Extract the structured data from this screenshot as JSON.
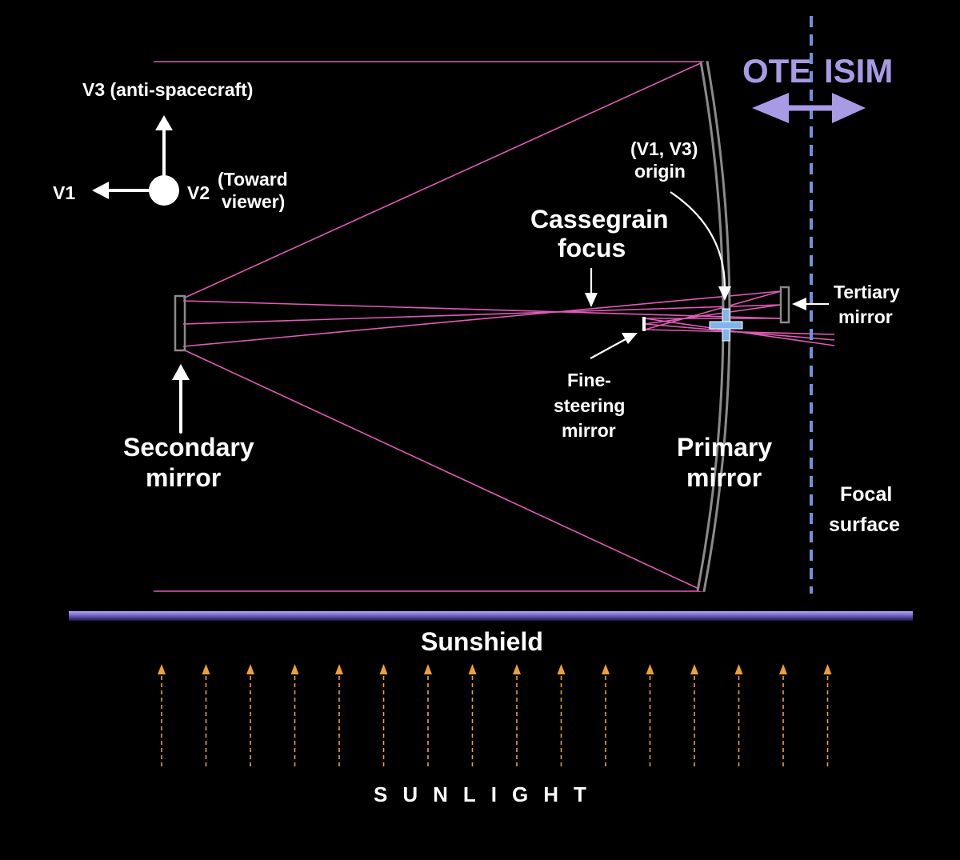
{
  "colors": {
    "background": "#000000",
    "light_ray": "#e05ab6",
    "mirror": "#8a8a8a",
    "focal_line": "#6f93d8",
    "section_label": "#a99ae6",
    "origin_cross": "#7fb6ea",
    "sunshield": "#8b7fd0",
    "sunlight": "#f0a030"
  },
  "axes": {
    "v3_label": "V3 (anti-spacecraft)",
    "v1_label": "V1",
    "v2_label": "V2",
    "v2_note_line1": "(Toward",
    "v2_note_line2": "viewer)"
  },
  "sections": {
    "ote": "OTE",
    "isim": "ISIM"
  },
  "labels": {
    "origin_line1": "(V1, V3)",
    "origin_line2": "origin",
    "cassegrain_line1": "Cassegrain",
    "cassegrain_line2": "focus",
    "tertiary_line1": "Tertiary",
    "tertiary_line2": "mirror",
    "fine_steering_line1": "Fine-",
    "fine_steering_line2": "steering",
    "fine_steering_line3": "mirror",
    "secondary_line1": "Secondary",
    "secondary_line2": "mirror",
    "primary_line1": "Primary",
    "primary_line2": "mirror",
    "focal_line1": "Focal",
    "focal_line2": "surface",
    "sunshield": "Sunshield",
    "sunlight": "SUNLIGHT"
  },
  "icons": {
    "origin_marker": "plus-cross-icon",
    "v2_marker": "filled-circle-icon",
    "sunlight_arrow": "dashed-up-arrow-icon"
  }
}
